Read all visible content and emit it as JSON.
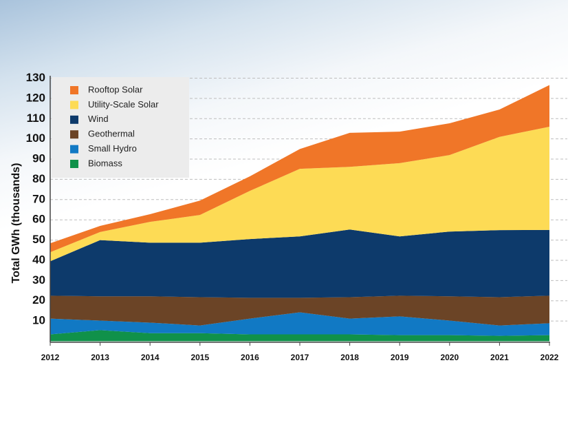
{
  "chart_data": {
    "type": "stacked-area",
    "y_label": "Total GWh (thousands)",
    "x": [
      2012,
      2013,
      2014,
      2015,
      2016,
      2017,
      2018,
      2019,
      2020,
      2021,
      2022
    ],
    "xlim": [
      2012,
      2022
    ],
    "xticks": [
      2012,
      2013,
      2014,
      2015,
      2016,
      2017,
      2018,
      2019,
      2020,
      2021,
      2022
    ],
    "ylim": [
      0,
      130
    ],
    "yticks": [
      10,
      20,
      30,
      40,
      50,
      60,
      70,
      80,
      90,
      100,
      110,
      120,
      130
    ],
    "grid": true,
    "legend": "top-left",
    "series": [
      {
        "name": "Biomass",
        "color": "#10914a",
        "values": [
          3.4,
          5.5,
          4,
          4,
          3.4,
          3.4,
          3.4,
          3,
          3,
          2.7,
          3
        ]
      },
      {
        "name": "Small Hydro",
        "color": "#1179c4",
        "values": [
          7.8,
          4.7,
          5.2,
          3.8,
          7.8,
          10.9,
          7.8,
          9.3,
          7.2,
          5.1,
          5.9
        ]
      },
      {
        "name": "Geothermal",
        "color": "#6b4426",
        "values": [
          11.3,
          12,
          13,
          14,
          10.3,
          7.2,
          10.6,
          10.2,
          12,
          14,
          13.6
        ]
      },
      {
        "name": "Wind",
        "color": "#0d3a6b",
        "values": [
          17,
          27.8,
          26.5,
          26.9,
          29,
          30.3,
          33.4,
          29.3,
          32,
          33.1,
          32.5
        ]
      },
      {
        "name": "Utility-Scale Solar",
        "color": "#fddb55",
        "values": [
          4.5,
          4,
          10.3,
          13.7,
          23.8,
          33.4,
          31,
          36.2,
          37.8,
          46.1,
          51
        ]
      },
      {
        "name": "Rooftop Solar",
        "color": "#f07628",
        "values": [
          4.4,
          3,
          3.8,
          7.1,
          7.2,
          9.8,
          16.8,
          15.6,
          15.7,
          13.5,
          20.6
        ]
      }
    ]
  }
}
